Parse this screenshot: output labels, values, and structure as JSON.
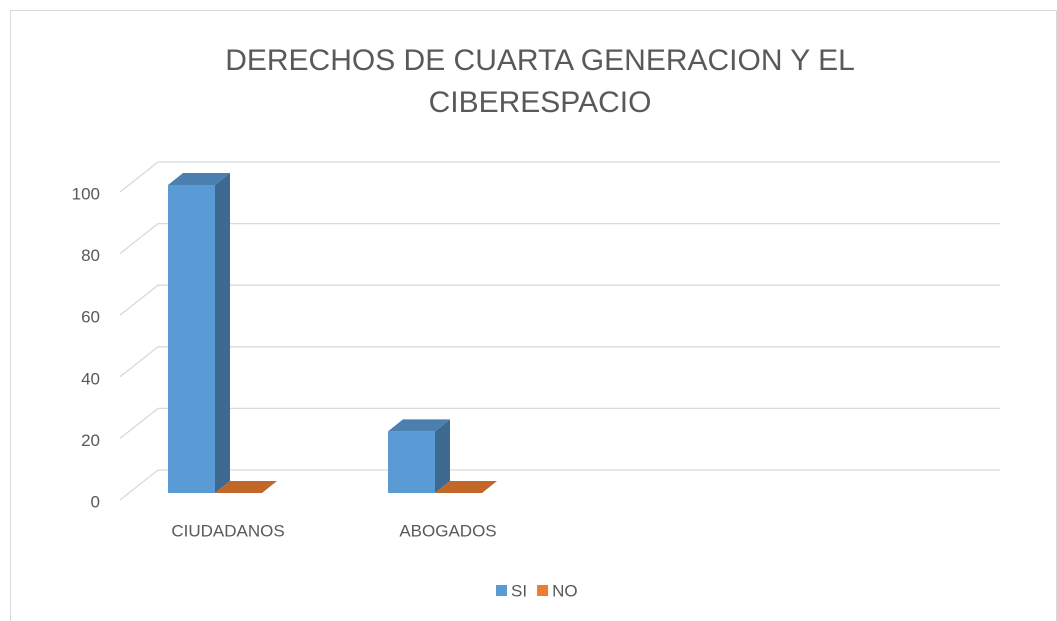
{
  "chart_data": {
    "type": "bar3d",
    "title": [
      "DERECHOS DE CUARTA GENERACION Y EL",
      "CIBERESPACIO"
    ],
    "categories": [
      "CIUDADANOS",
      "ABOGADOS",
      null,
      null
    ],
    "series": [
      {
        "name": "SI",
        "color": "#5b9bd5",
        "values": [
          100,
          20,
          null,
          null
        ]
      },
      {
        "name": "NO",
        "color": "#ed7d31",
        "values": [
          0,
          0,
          null,
          null
        ]
      }
    ],
    "ylim": [
      0,
      100
    ],
    "yticks": [
      0,
      20,
      40,
      60,
      80,
      100
    ],
    "grid": true,
    "legend": "bottom"
  }
}
